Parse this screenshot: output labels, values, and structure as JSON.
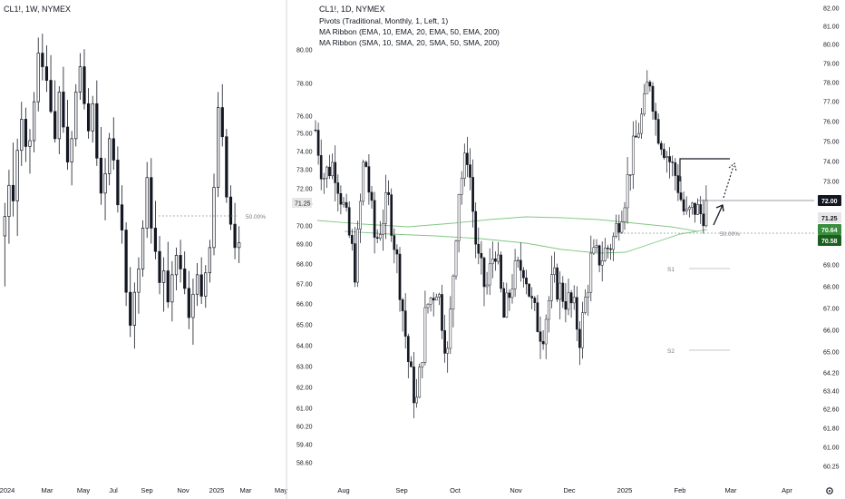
{
  "chart_data": [
    {
      "type": "candlestick",
      "ticker": "CL1!, 1W, NYMEX",
      "x_labels": [
        "2024",
        "Mar",
        "May",
        "Jul",
        "Sep",
        "Nov",
        "2025",
        "Mar",
        "May"
      ],
      "annotation_label": "50.00%",
      "annotation_level": 71.25,
      "ylim": [
        59.0,
        82.8
      ],
      "last_close": 71.25,
      "ohlc": [
        [
          71.6,
          73.3,
          69.0,
          72.6
        ],
        [
          72.6,
          75.0,
          71.2,
          74.2
        ],
        [
          74.2,
          76.4,
          72.6,
          73.4
        ],
        [
          73.4,
          76.6,
          71.6,
          76.0
        ],
        [
          76.0,
          78.5,
          75.2,
          77.6
        ],
        [
          77.6,
          78.2,
          75.4,
          76.2
        ],
        [
          76.2,
          77.1,
          74.8,
          76.5
        ],
        [
          76.5,
          79.0,
          75.9,
          78.5
        ],
        [
          78.5,
          81.8,
          78.0,
          81.0
        ],
        [
          81.0,
          82.0,
          79.6,
          80.3
        ],
        [
          80.3,
          81.4,
          79.0,
          79.6
        ],
        [
          79.6,
          80.9,
          77.9,
          78.0
        ],
        [
          78.0,
          79.6,
          76.4,
          76.6
        ],
        [
          76.6,
          79.3,
          75.8,
          79.0
        ],
        [
          79.0,
          80.3,
          76.9,
          77.2
        ],
        [
          77.2,
          78.6,
          75.0,
          75.4
        ],
        [
          75.4,
          77.0,
          74.2,
          76.6
        ],
        [
          76.6,
          79.4,
          76.2,
          79.0
        ],
        [
          79.0,
          81.0,
          78.6,
          80.3
        ],
        [
          80.3,
          81.2,
          78.1,
          78.4
        ],
        [
          78.4,
          79.2,
          76.6,
          77.0
        ],
        [
          77.0,
          78.8,
          76.4,
          78.4
        ],
        [
          78.4,
          79.6,
          75.2,
          75.6
        ],
        [
          75.6,
          77.2,
          73.2,
          73.8
        ],
        [
          73.8,
          75.6,
          72.4,
          74.8
        ],
        [
          74.8,
          76.9,
          74.2,
          76.6
        ],
        [
          76.6,
          77.7,
          75.0,
          75.5
        ],
        [
          75.5,
          76.2,
          72.8,
          73.2
        ],
        [
          73.2,
          74.2,
          71.2,
          71.9
        ],
        [
          71.9,
          72.3,
          68.0,
          68.7
        ],
        [
          68.7,
          70.0,
          66.4,
          67.0
        ],
        [
          67.0,
          69.2,
          65.8,
          68.7
        ],
        [
          68.7,
          70.5,
          67.6,
          69.9
        ],
        [
          69.9,
          72.4,
          69.5,
          72.0
        ],
        [
          72.0,
          75.4,
          71.5,
          74.6
        ],
        [
          74.6,
          75.6,
          71.2,
          72.0
        ],
        [
          72.0,
          73.4,
          70.4,
          70.8
        ],
        [
          70.8,
          71.6,
          68.6,
          69.2
        ],
        [
          69.2,
          70.5,
          67.7,
          69.8
        ],
        [
          69.8,
          71.3,
          67.9,
          68.2
        ],
        [
          68.2,
          70.3,
          67.2,
          69.6
        ],
        [
          69.6,
          71.0,
          68.8,
          70.6
        ],
        [
          70.6,
          71.4,
          69.2,
          69.9
        ],
        [
          69.9,
          70.8,
          68.6,
          68.9
        ],
        [
          68.9,
          69.8,
          66.8,
          67.4
        ],
        [
          67.4,
          69.4,
          66.0,
          68.6
        ],
        [
          68.6,
          70.2,
          68.0,
          69.6
        ],
        [
          69.6,
          70.5,
          68.1,
          68.5
        ],
        [
          68.5,
          70.1,
          67.9,
          69.7
        ],
        [
          69.7,
          71.4,
          69.2,
          71.0
        ],
        [
          71.0,
          74.8,
          70.6,
          74.1
        ],
        [
          74.1,
          79.0,
          73.6,
          78.2
        ],
        [
          78.2,
          79.4,
          76.2,
          76.7
        ],
        [
          76.7,
          77.1,
          73.3,
          73.6
        ],
        [
          73.6,
          74.2,
          71.9,
          72.2
        ],
        [
          72.2,
          73.3,
          70.4,
          71.0
        ],
        [
          71.0,
          72.1,
          70.2,
          71.25
        ]
      ]
    },
    {
      "type": "candlestick",
      "ticker": "CL1!, 1D, NYMEX",
      "indicators": [
        "Pivots (Traditional, Monthly, 1, Left, 1)",
        "MA Ribbon (EMA, 10, EMA, 20, EMA, 50, EMA, 200)",
        "MA Ribbon (SMA, 10, SMA, 20, SMA, 50, SMA, 200)"
      ],
      "x_labels": [
        "Aug",
        "Sep",
        "Oct",
        "Nov",
        "Dec",
        "2025",
        "Feb",
        "Mar",
        "Apr"
      ],
      "y_ticks_left": [
        80.0,
        78.0,
        76.0,
        75.0,
        74.0,
        73.0,
        72.0,
        71.25,
        70.0,
        69.0,
        68.0,
        67.0,
        66.0,
        65.0,
        64.0,
        63.0,
        62.0,
        61.0,
        60.2,
        59.4,
        58.6
      ],
      "y_ticks_right": [
        82.0,
        81.0,
        80.0,
        79.0,
        78.0,
        77.0,
        76.0,
        75.0,
        74.0,
        73.0,
        72.0,
        71.25,
        70.64,
        70.58,
        69.0,
        68.0,
        67.0,
        66.0,
        65.0,
        64.2,
        63.4,
        62.6,
        61.8,
        61.0,
        60.25
      ],
      "ylim": [
        58.0,
        83.0
      ],
      "price_tags": [
        {
          "label": "72.00",
          "value": 72.0,
          "bg": "#131722",
          "fg": "#ffffff"
        },
        {
          "label": "71.25",
          "value": 71.25,
          "bg": "#e6e6e6",
          "fg": "#131722"
        },
        {
          "label": "70.64",
          "value": 70.64,
          "bg": "#388e3c",
          "fg": "#ffffff"
        },
        {
          "label": "70.58",
          "value": 70.58,
          "bg": "#1b5e20",
          "fg": "#ffffff"
        }
      ],
      "pivot_labels": [
        "S1",
        "S2"
      ],
      "pivot_s1": 68.9,
      "pivot_s2": 65.0,
      "annotation_label": "50.00%",
      "resistance": 74.0,
      "horizontal_level": 72.0,
      "ma_color": "#4caf50",
      "last_close": 71.25
    }
  ],
  "colors": {
    "up_fill": "#ffffff",
    "down_fill": "#131722",
    "wick": "#131722",
    "grid": "#f0f3fa",
    "divider": "#d1d4dc",
    "ma": "#81c784",
    "ma_dark": "#4caf50",
    "pivot": "#b2b5be"
  },
  "controls": {
    "settings_icon": "gear-icon"
  }
}
